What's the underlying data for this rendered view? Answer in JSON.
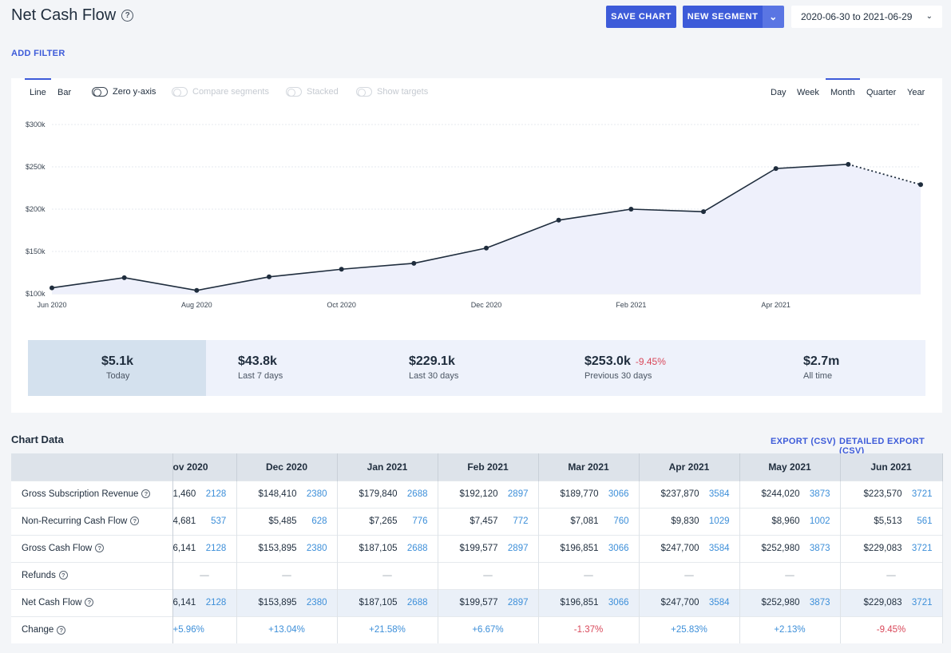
{
  "header": {
    "title": "Net Cash Flow",
    "help_icon": "question-circle-icon",
    "save_label": "SAVE CHART",
    "segment_label": "NEW SEGMENT",
    "date_range": "2020-06-30 to 2021-06-29",
    "add_filter": "ADD FILTER"
  },
  "chart_controls": {
    "line": "Line",
    "bar": "Bar",
    "zero_y": "Zero y-axis",
    "compare": "Compare segments",
    "stacked": "Stacked",
    "targets": "Show targets",
    "periods": [
      "Day",
      "Week",
      "Month",
      "Quarter",
      "Year"
    ],
    "active_period": "Month"
  },
  "chart_data": {
    "type": "line",
    "title": "",
    "x": [
      "Jun 2020",
      "Jul 2020",
      "Aug 2020",
      "Sep 2020",
      "Oct 2020",
      "Nov 2020",
      "Dec 2020",
      "Jan 2021",
      "Feb 2021",
      "Mar 2021",
      "Apr 2021",
      "May 2021",
      "Jun 2021"
    ],
    "values": [
      107,
      119,
      104,
      120,
      129,
      136,
      154,
      187,
      200,
      197,
      248,
      253,
      229
    ],
    "units": "$k",
    "ylim": [
      100,
      300
    ],
    "yticks": [
      "$100k",
      "$150k",
      "$200k",
      "$250k",
      "$300k"
    ],
    "xtick_labels": [
      "Jun 2020",
      "Aug 2020",
      "Oct 2020",
      "Dec 2020",
      "Feb 2021",
      "Apr 2021"
    ],
    "last_segment_dotted": true,
    "grid": true,
    "line_color": "#1f2d3d",
    "fill_color": "#eef0fb"
  },
  "stats": [
    {
      "value": "$5.1k",
      "label": "Today",
      "active": true
    },
    {
      "value": "$43.8k",
      "label": "Last 7 days"
    },
    {
      "value": "$229.1k",
      "label": "Last 30 days"
    },
    {
      "value": "$253.0k",
      "label": "Previous 30 days",
      "change": "-9.45%"
    },
    {
      "value": "$2.7m",
      "label": "All time"
    }
  ],
  "table": {
    "title": "Chart Data",
    "export": "EXPORT (CSV)",
    "detailed_export": "DETAILED EXPORT (CSV)",
    "columns": [
      "ov 2020",
      "Dec 2020",
      "Jan 2021",
      "Feb 2021",
      "Mar 2021",
      "Apr 2021",
      "May 2021",
      "Jun 2021"
    ],
    "rows": [
      {
        "label": "Gross Subscription Revenue",
        "cells": [
          [
            "1,460",
            "2128"
          ],
          [
            "$148,410",
            "2380"
          ],
          [
            "$179,840",
            "2688"
          ],
          [
            "$192,120",
            "2897"
          ],
          [
            "$189,770",
            "3066"
          ],
          [
            "$237,870",
            "3584"
          ],
          [
            "$244,020",
            "3873"
          ],
          [
            "$223,570",
            "3721"
          ]
        ]
      },
      {
        "label": "Non-Recurring Cash Flow",
        "cells": [
          [
            "4,681",
            "537"
          ],
          [
            "$5,485",
            "628"
          ],
          [
            "$7,265",
            "776"
          ],
          [
            "$7,457",
            "772"
          ],
          [
            "$7,081",
            "760"
          ],
          [
            "$9,830",
            "1029"
          ],
          [
            "$8,960",
            "1002"
          ],
          [
            "$5,513",
            "561"
          ]
        ]
      },
      {
        "label": "Gross Cash Flow",
        "cells": [
          [
            "6,141",
            "2128"
          ],
          [
            "$153,895",
            "2380"
          ],
          [
            "$187,105",
            "2688"
          ],
          [
            "$199,577",
            "2897"
          ],
          [
            "$196,851",
            "3066"
          ],
          [
            "$247,700",
            "3584"
          ],
          [
            "$252,980",
            "3873"
          ],
          [
            "$229,083",
            "3721"
          ]
        ]
      },
      {
        "label": "Refunds",
        "dash": "—"
      },
      {
        "label": "Net Cash Flow",
        "highlight": true,
        "cells": [
          [
            "6,141",
            "2128"
          ],
          [
            "$153,895",
            "2380"
          ],
          [
            "$187,105",
            "2688"
          ],
          [
            "$199,577",
            "2897"
          ],
          [
            "$196,851",
            "3066"
          ],
          [
            "$247,700",
            "3584"
          ],
          [
            "$252,980",
            "3873"
          ],
          [
            "$229,083",
            "3721"
          ]
        ]
      },
      {
        "label": "Change",
        "changes": [
          "+5.96%",
          "+13.04%",
          "+21.58%",
          "+6.67%",
          "-1.37%",
          "+25.83%",
          "+2.13%",
          "-9.45%"
        ]
      }
    ]
  }
}
